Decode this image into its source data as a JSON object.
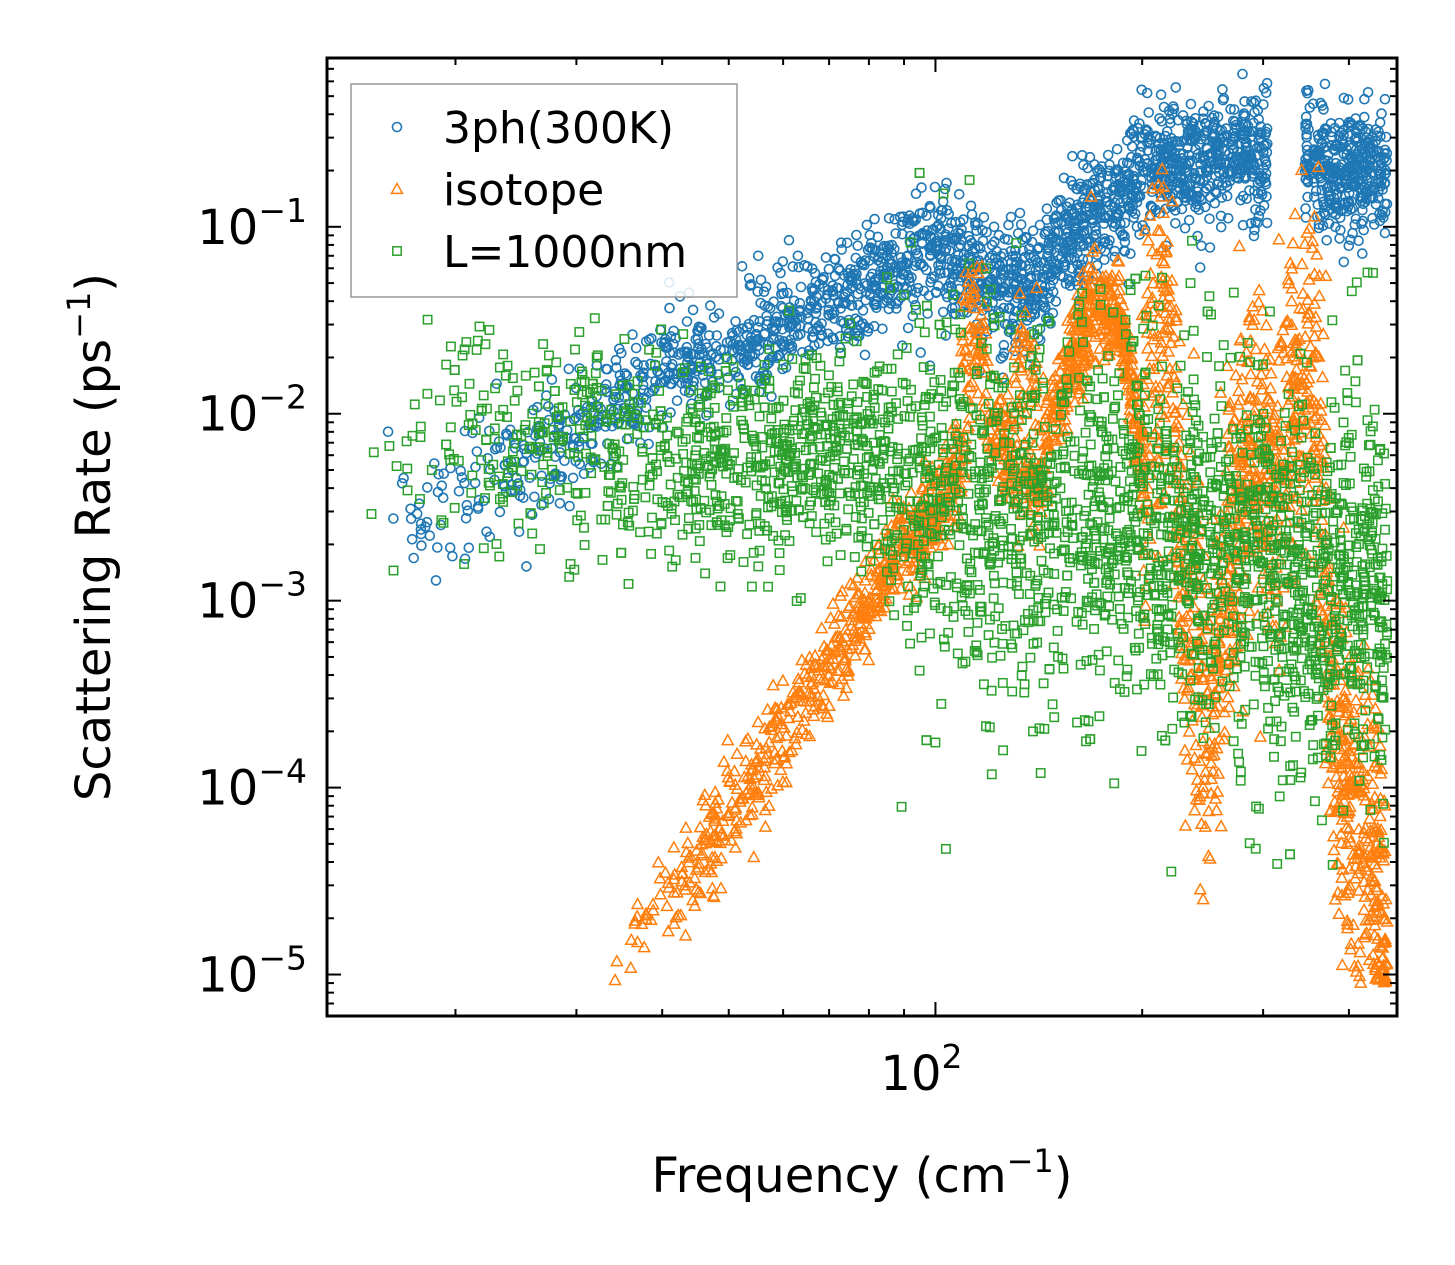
{
  "chart_data": {
    "type": "scatter",
    "xscale": "log",
    "yscale": "log",
    "xlabel": "Frequency (cm",
    "xlabel_sup": "−1",
    "xlabel_end": ")",
    "ylabel": "Scattering Rate (ps",
    "ylabel_sup": "−1",
    "ylabel_end": ")",
    "xlim": [
      13,
      470
    ],
    "ylim": [
      6e-06,
      0.8
    ],
    "x_major_ticks": [
      {
        "value": 100,
        "base": "10",
        "exp": "2"
      }
    ],
    "y_major_ticks": [
      {
        "value": 1e-05,
        "base": "10",
        "exp": "−5"
      },
      {
        "value": 0.0001,
        "base": "10",
        "exp": "−4"
      },
      {
        "value": 0.001,
        "base": "10",
        "exp": "−3"
      },
      {
        "value": 0.01,
        "base": "10",
        "exp": "−2"
      },
      {
        "value": 0.1,
        "base": "10",
        "exp": "−1"
      }
    ],
    "legend_position": "top-left",
    "series": [
      {
        "name": "3ph(300K)",
        "marker": "circle",
        "color": "#1f77b4",
        "description": "Three-phonon scattering rates, approximate envelope (median and spread) across frequency",
        "trend": [
          [
            15,
            0.0028
          ],
          [
            20,
            0.0035
          ],
          [
            25,
            0.005
          ],
          [
            30,
            0.008
          ],
          [
            35,
            0.012
          ],
          [
            40,
            0.016
          ],
          [
            45,
            0.02
          ],
          [
            50,
            0.022
          ],
          [
            55,
            0.026
          ],
          [
            60,
            0.03
          ],
          [
            65,
            0.034
          ],
          [
            70,
            0.037
          ],
          [
            80,
            0.045
          ],
          [
            90,
            0.06
          ],
          [
            100,
            0.075
          ],
          [
            110,
            0.06
          ],
          [
            120,
            0.05
          ],
          [
            130,
            0.045
          ],
          [
            140,
            0.05
          ],
          [
            150,
            0.075
          ],
          [
            160,
            0.1
          ],
          [
            180,
            0.14
          ],
          [
            200,
            0.2
          ],
          [
            220,
            0.24
          ],
          [
            240,
            0.2
          ],
          [
            260,
            0.24
          ],
          [
            280,
            0.25
          ],
          [
            300,
            0.22
          ],
          [
            350,
            0.22
          ],
          [
            380,
            0.18
          ],
          [
            400,
            0.2
          ],
          [
            420,
            0.2
          ],
          [
            450,
            0.2
          ]
        ],
        "gap": [
          305,
          345
        ]
      },
      {
        "name": "isotope",
        "marker": "triangle",
        "color": "#ff7f0e",
        "description": "Isotope scattering rates, roughly proportional to frequency^4 with peaks",
        "trend": [
          [
            34,
            1.1e-05
          ],
          [
            40,
            2.5e-05
          ],
          [
            45,
            4e-05
          ],
          [
            50,
            7e-05
          ],
          [
            55,
            0.00012
          ],
          [
            60,
            0.0002
          ],
          [
            65,
            0.0003
          ],
          [
            70,
            0.00045
          ],
          [
            75,
            0.0007
          ],
          [
            80,
            0.001
          ],
          [
            85,
            0.0015
          ],
          [
            90,
            0.002
          ],
          [
            100,
            0.003
          ],
          [
            110,
            0.006
          ],
          [
            115,
            0.03
          ],
          [
            120,
            0.008
          ],
          [
            140,
            0.004
          ],
          [
            150,
            0.01
          ],
          [
            170,
            0.04
          ],
          [
            185,
            0.035
          ],
          [
            200,
            0.006
          ],
          [
            215,
            0.03
          ],
          [
            230,
            0.001
          ],
          [
            250,
            0.0002
          ],
          [
            270,
            0.002
          ],
          [
            290,
            0.008
          ],
          [
            300,
            0.003
          ],
          [
            350,
            0.02
          ],
          [
            370,
            0.0005
          ],
          [
            400,
            0.0001
          ],
          [
            430,
            4e-05
          ],
          [
            455,
            2e-05
          ]
        ],
        "peaks": [
          [
            114,
            0.04
          ],
          [
            135,
            0.025
          ],
          [
            175,
            0.04
          ],
          [
            215,
            0.04
          ],
          [
            290,
            0.008
          ],
          [
            354,
            0.022
          ]
        ]
      },
      {
        "name": "L=1000nm",
        "marker": "square",
        "color": "#2ca02c",
        "description": "Boundary scattering rates for L=1000nm, roughly constant with large spread",
        "trend": [
          [
            15,
            0.006
          ],
          [
            20,
            0.007
          ],
          [
            25,
            0.007
          ],
          [
            30,
            0.007
          ],
          [
            35,
            0.006
          ],
          [
            40,
            0.006
          ],
          [
            50,
            0.006
          ],
          [
            60,
            0.006
          ],
          [
            70,
            0.007
          ],
          [
            80,
            0.006
          ],
          [
            90,
            0.005
          ],
          [
            100,
            0.004
          ],
          [
            120,
            0.003
          ],
          [
            150,
            0.003
          ],
          [
            180,
            0.0025
          ],
          [
            200,
            0.003
          ],
          [
            250,
            0.002
          ],
          [
            290,
            0.0015
          ],
          [
            360,
            0.001
          ],
          [
            400,
            0.0015
          ],
          [
            450,
            0.001
          ]
        ]
      }
    ]
  }
}
